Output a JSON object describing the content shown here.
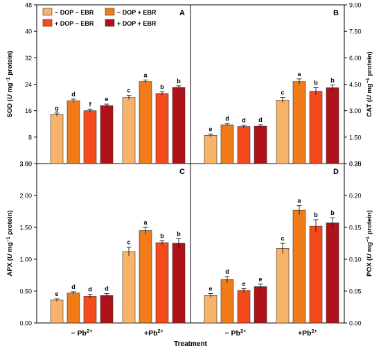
{
  "figure": {
    "xlabel": "Treatment",
    "group_labels": [
      {
        "main": "− Pb",
        "sup": "2+"
      },
      {
        "main": "+Pb",
        "sup": "2+"
      }
    ],
    "legend": [
      {
        "text": "− DOP  − EBR",
        "color": "#F8B36A"
      },
      {
        "text": "− DOP + EBR",
        "color": "#F07B18"
      },
      {
        "text": "+ DOP  − EBR",
        "color": "#F44A1C"
      },
      {
        "text": "+ DOP  + EBR",
        "color": "#B0121A"
      }
    ],
    "colors": [
      "#F8B36A",
      "#F07B18",
      "#F44A1C",
      "#B0121A"
    ]
  },
  "chart_data": [
    {
      "panel": "A",
      "type": "bar",
      "ylabel": {
        "pre": "SOD (",
        "italic": "U",
        "mid": " mg",
        "sup": "−1",
        "post": " protein)"
      },
      "y_side": "left",
      "ylim": [
        0,
        48
      ],
      "yticks": [
        "3.00",
        "8",
        "16",
        "24",
        "32",
        "40",
        "48"
      ],
      "categories": [
        "− Pb2+",
        "+Pb2+"
      ],
      "series": [
        {
          "name": "− DOP  − EBR",
          "values": [
            14.8,
            20.0
          ],
          "errors": [
            0.5,
            0.6
          ],
          "letters": [
            "g",
            "c"
          ]
        },
        {
          "name": "− DOP + EBR",
          "values": [
            19.0,
            24.8
          ],
          "errors": [
            0.5,
            0.5
          ],
          "letters": [
            "d",
            "a"
          ]
        },
        {
          "name": "+ DOP  − EBR",
          "values": [
            16.0,
            21.2
          ],
          "errors": [
            0.5,
            0.5
          ],
          "letters": [
            "f",
            "b"
          ]
        },
        {
          "name": "+ DOP  + EBR",
          "values": [
            17.5,
            23.0
          ],
          "errors": [
            0.5,
            0.5
          ],
          "letters": [
            "e",
            "b"
          ]
        }
      ]
    },
    {
      "panel": "B",
      "type": "bar",
      "ylabel": {
        "pre": "CAT (",
        "italic": "U",
        "mid": " mg",
        "sup": "−1",
        "post": " protein)"
      },
      "y_side": "right",
      "ylim": [
        0,
        9
      ],
      "yticks": [
        "0.30",
        "1.50",
        "3.00",
        "4.50",
        "6.00",
        "7.50",
        "9.00"
      ],
      "categories": [
        "− Pb2+",
        "+Pb2+"
      ],
      "series": [
        {
          "name": "− DOP  − EBR",
          "values": [
            1.6,
            3.6
          ],
          "errors": [
            0.08,
            0.15
          ],
          "letters": [
            "e",
            "c"
          ]
        },
        {
          "name": "− DOP + EBR",
          "values": [
            2.2,
            4.65
          ],
          "errors": [
            0.07,
            0.15
          ],
          "letters": [
            "d",
            "a"
          ]
        },
        {
          "name": "+ DOP  − EBR",
          "values": [
            2.1,
            4.1
          ],
          "errors": [
            0.08,
            0.2
          ],
          "letters": [
            "d",
            "b"
          ]
        },
        {
          "name": "+ DOP  + EBR",
          "values": [
            2.12,
            4.3
          ],
          "errors": [
            0.08,
            0.15
          ],
          "letters": [
            "d",
            "b"
          ]
        }
      ]
    },
    {
      "panel": "C",
      "type": "bar",
      "ylabel": {
        "pre": "APX (",
        "italic": "U",
        "mid": " mg",
        "sup": "−1",
        "post": " protein)"
      },
      "y_side": "left",
      "ylim": [
        0,
        2.5
      ],
      "yticks": [
        "0.00",
        "0.50",
        "1.00",
        "1.50",
        "2.00",
        "2.50"
      ],
      "categories": [
        "− Pb2+",
        "+Pb2+"
      ],
      "series": [
        {
          "name": "− DOP  − EBR",
          "values": [
            0.36,
            1.12
          ],
          "errors": [
            0.02,
            0.07
          ],
          "letters": [
            "e",
            "c"
          ]
        },
        {
          "name": "− DOP + EBR",
          "values": [
            0.47,
            1.45
          ],
          "errors": [
            0.02,
            0.05
          ],
          "letters": [
            "d",
            "a"
          ]
        },
        {
          "name": "+ DOP  − EBR",
          "values": [
            0.42,
            1.26
          ],
          "errors": [
            0.03,
            0.03
          ],
          "letters": [
            "d",
            "b"
          ]
        },
        {
          "name": "+ DOP  + EBR",
          "values": [
            0.43,
            1.25
          ],
          "errors": [
            0.03,
            0.07
          ],
          "letters": [
            "d",
            "b"
          ]
        }
      ]
    },
    {
      "panel": "D",
      "type": "bar",
      "ylabel": {
        "pre": "POX (",
        "italic": "U",
        "mid": " mg",
        "sup": "−1",
        "post": " protein)"
      },
      "y_side": "right",
      "ylim": [
        0,
        0.25
      ],
      "yticks": [
        "0.00",
        "0.05",
        "0.10",
        "0.15",
        "0.20",
        "0.25"
      ],
      "categories": [
        "− Pb2+",
        "+Pb2+"
      ],
      "series": [
        {
          "name": "− DOP  − EBR",
          "values": [
            0.043,
            0.117
          ],
          "errors": [
            0.003,
            0.008
          ],
          "letters": [
            "e",
            "c"
          ]
        },
        {
          "name": "− DOP + EBR",
          "values": [
            0.068,
            0.177
          ],
          "errors": [
            0.005,
            0.007
          ],
          "letters": [
            "d",
            "a"
          ]
        },
        {
          "name": "+ DOP  − EBR",
          "values": [
            0.051,
            0.152
          ],
          "errors": [
            0.003,
            0.01
          ],
          "letters": [
            "e",
            "b"
          ]
        },
        {
          "name": "+ DOP  + EBR",
          "values": [
            0.057,
            0.157
          ],
          "errors": [
            0.004,
            0.008
          ],
          "letters": [
            "e",
            "b"
          ]
        }
      ]
    }
  ]
}
